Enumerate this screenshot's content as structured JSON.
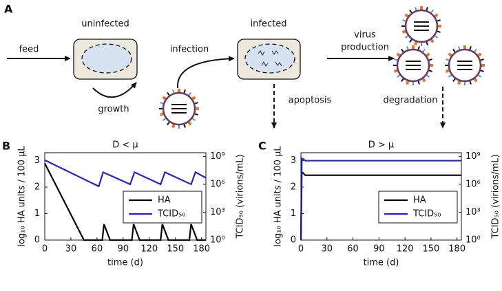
{
  "diagram": {
    "panel_label": "A",
    "uninfected": "uninfected",
    "infected": "infected",
    "feed": "feed",
    "infection": "infection",
    "growth": "growth",
    "virus_production": [
      "virus",
      "production"
    ],
    "apoptosis": "apoptosis",
    "degradation": "degradation"
  },
  "chart_data": [
    {
      "type": "line",
      "panel_label": "B",
      "title": "D < μ",
      "xlabel": "time (d)",
      "ylabel": "log₁₀ HA units / 100 μL",
      "y2label": "TCID₅₀ (virions/mL)",
      "xlim": [
        0,
        185
      ],
      "xticks": [
        0,
        30,
        60,
        90,
        120,
        150,
        180
      ],
      "ylim": [
        0,
        3.3
      ],
      "yticks": [
        0,
        1,
        2,
        3
      ],
      "y2lim": [
        1,
        2500000000
      ],
      "y2scale": "log",
      "y2ticks": [
        {
          "value": 1,
          "label": "10⁰"
        },
        {
          "value": 1000,
          "label": "10³"
        },
        {
          "value": 1000000,
          "label": "10⁶"
        },
        {
          "value": 1000000000,
          "label": "10⁹"
        }
      ],
      "legend": "lower right",
      "series": [
        {
          "name": "HA",
          "color": "#000000",
          "x": [
            0,
            45,
            66,
            68,
            75,
            100,
            102,
            109,
            133,
            135,
            142,
            166,
            168,
            175,
            185
          ],
          "values": [
            2.9,
            0,
            0,
            0.6,
            0,
            0,
            0.6,
            0,
            0,
            0.6,
            0,
            0,
            0.6,
            0,
            0
          ]
        },
        {
          "name": "TCID₅₀",
          "color": "#2323cc",
          "axis": "y2",
          "x": [
            0,
            62,
            67,
            98,
            103,
            133,
            138,
            168,
            173,
            185
          ],
          "values": [
            400000000,
            600000,
            20000000,
            1000000,
            20000000,
            1000000,
            20000000,
            1000000,
            20000000,
            5000000
          ]
        }
      ]
    },
    {
      "type": "line",
      "panel_label": "C",
      "title": "D > μ",
      "xlabel": "time (d)",
      "ylabel": "log₁₀ HA units / 100 μL",
      "y2label": "TCID₅₀ (virions/mL)",
      "xlim": [
        0,
        185
      ],
      "xticks": [
        0,
        30,
        60,
        90,
        120,
        150,
        180
      ],
      "ylim": [
        0,
        3.3
      ],
      "yticks": [
        0,
        1,
        2,
        3
      ],
      "y2lim": [
        1,
        2500000000
      ],
      "y2scale": "log",
      "y2ticks": [
        {
          "value": 1,
          "label": "10⁰"
        },
        {
          "value": 1000,
          "label": "10³"
        },
        {
          "value": 1000000,
          "label": "10⁶"
        },
        {
          "value": 1000000000,
          "label": "10⁹"
        }
      ],
      "legend": "lower right",
      "series": [
        {
          "name": "HA",
          "color": "#000000",
          "x": [
            0,
            1,
            2,
            5,
            185
          ],
          "values": [
            0,
            2.55,
            2.55,
            2.45,
            2.45
          ]
        },
        {
          "name": "TCID₅₀",
          "color": "#2323cc",
          "axis": "y2",
          "x": [
            0,
            1,
            2,
            5,
            185
          ],
          "values": [
            1,
            600000000,
            600000000,
            350000000,
            350000000
          ]
        }
      ]
    }
  ]
}
